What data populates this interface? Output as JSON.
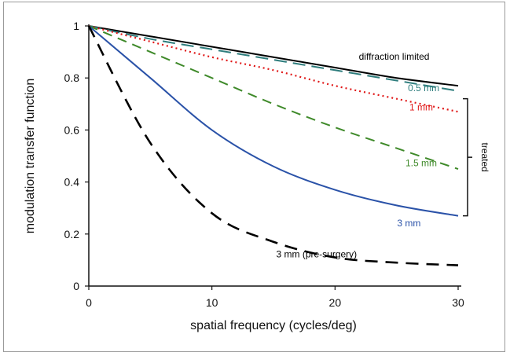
{
  "chart_data": {
    "type": "line",
    "title": "",
    "xlabel": "spatial frequency (cycles/deg)",
    "ylabel": "modulation transfer function",
    "xlim": [
      0,
      30
    ],
    "ylim": [
      0,
      1
    ],
    "x_ticks": [
      0,
      10,
      20,
      30
    ],
    "x_tick_labels": [
      "0",
      "10",
      "20",
      "30"
    ],
    "y_ticks": [
      0,
      0.2,
      0.4,
      0.6,
      0.8,
      1
    ],
    "y_tick_labels": [
      "0",
      "0.2",
      "0.4",
      "0.6",
      "0.8",
      "1"
    ],
    "grid": false,
    "x": [
      0,
      5,
      10,
      15,
      20,
      25,
      30
    ],
    "series": [
      {
        "name": "diffraction limited",
        "color": "#000000",
        "dash": "solid",
        "values": [
          1.0,
          0.96,
          0.92,
          0.88,
          0.84,
          0.8,
          0.77
        ]
      },
      {
        "name": "0.5 mm",
        "color": "#2e7d7d",
        "dash": "longdash",
        "values": [
          1.0,
          0.95,
          0.91,
          0.87,
          0.83,
          0.79,
          0.75
        ]
      },
      {
        "name": "1 mm",
        "color": "#e01818",
        "dash": "dot",
        "values": [
          1.0,
          0.94,
          0.88,
          0.83,
          0.77,
          0.72,
          0.67
        ]
      },
      {
        "name": "1.5 mm",
        "color": "#3f8a2a",
        "dash": "dash",
        "values": [
          1.0,
          0.9,
          0.8,
          0.7,
          0.61,
          0.53,
          0.45
        ]
      },
      {
        "name": "3 mm",
        "color": "#2a52a8",
        "dash": "solid",
        "values": [
          1.0,
          0.8,
          0.6,
          0.46,
          0.37,
          0.31,
          0.27
        ]
      },
      {
        "name": "3 mm (pre-surgery)",
        "color": "#000000",
        "dash": "heavydash",
        "values": [
          1.0,
          0.55,
          0.28,
          0.17,
          0.11,
          0.09,
          0.08
        ]
      }
    ],
    "series_labels": [
      {
        "text": "diffraction limited",
        "color": "#000000",
        "at": [
          24.8,
          0.87
        ]
      },
      {
        "text": "0.5 mm",
        "color": "#2e7d7d",
        "at": [
          27.2,
          0.75
        ]
      },
      {
        "text": "1 mm",
        "color": "#e01818",
        "at": [
          27.0,
          0.675
        ]
      },
      {
        "text": "1.5 mm",
        "color": "#3f8a2a",
        "at": [
          27.0,
          0.46
        ]
      },
      {
        "text": "3 mm",
        "color": "#2a52a8",
        "at": [
          26.0,
          0.23
        ]
      },
      {
        "text": "3 mm (pre-surgery)",
        "color": "#000000",
        "at": [
          18.5,
          0.11
        ]
      }
    ],
    "bracket_label": "treated"
  }
}
